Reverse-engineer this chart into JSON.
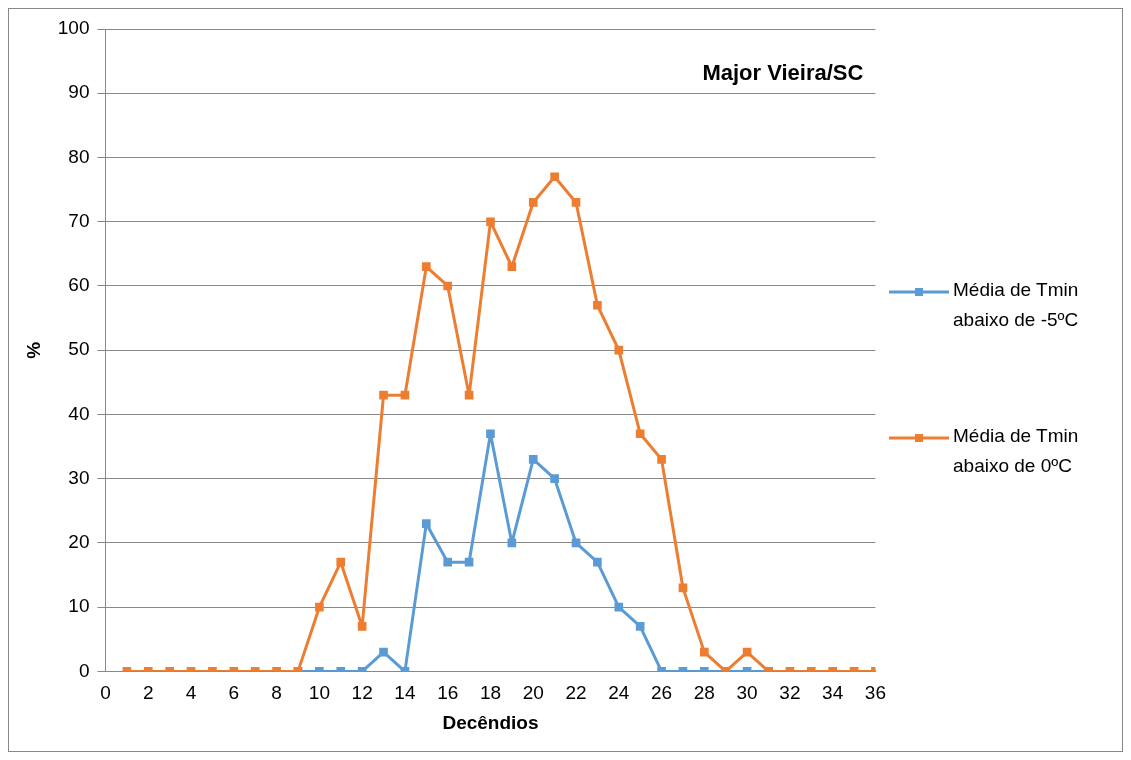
{
  "chart_data": {
    "type": "line",
    "title": "Major Vieira/SC",
    "xlabel": "Decêndios",
    "ylabel": "%",
    "x": [
      1,
      2,
      3,
      4,
      5,
      6,
      7,
      8,
      9,
      10,
      11,
      12,
      13,
      14,
      15,
      16,
      17,
      18,
      19,
      20,
      21,
      22,
      23,
      24,
      25,
      26,
      27,
      28,
      29,
      30,
      31,
      32,
      33,
      34,
      35,
      36
    ],
    "series": [
      {
        "name": "Média de Tmin abaixo de -5ºC",
        "color": "#5b9bd5",
        "values": [
          null,
          null,
          null,
          null,
          null,
          null,
          null,
          null,
          0,
          0,
          0,
          0,
          3,
          0,
          23,
          17,
          17,
          37,
          20,
          33,
          30,
          20,
          17,
          10,
          7,
          0,
          0,
          0,
          0,
          0,
          0,
          null,
          null,
          null,
          null,
          null
        ]
      },
      {
        "name": "Média de Tmin abaixo de 0ºC",
        "color": "#ed7d31",
        "values": [
          0,
          0,
          0,
          0,
          0,
          0,
          0,
          0,
          0,
          10,
          17,
          7,
          43,
          43,
          63,
          60,
          43,
          70,
          63,
          73,
          77,
          73,
          57,
          50,
          37,
          33,
          13,
          3,
          0,
          3,
          0,
          0,
          0,
          0,
          0,
          0
        ]
      }
    ],
    "xlim": [
      0,
      36
    ],
    "xticks": [
      0,
      2,
      4,
      6,
      8,
      10,
      12,
      14,
      16,
      18,
      20,
      22,
      24,
      26,
      28,
      30,
      32,
      34,
      36
    ],
    "ylim": [
      0,
      100
    ],
    "yticks": [
      0,
      10,
      20,
      30,
      40,
      50,
      60,
      70,
      80,
      90,
      100
    ],
    "grid": "y",
    "legend": "right",
    "marker": "square",
    "line_style": "solid"
  }
}
